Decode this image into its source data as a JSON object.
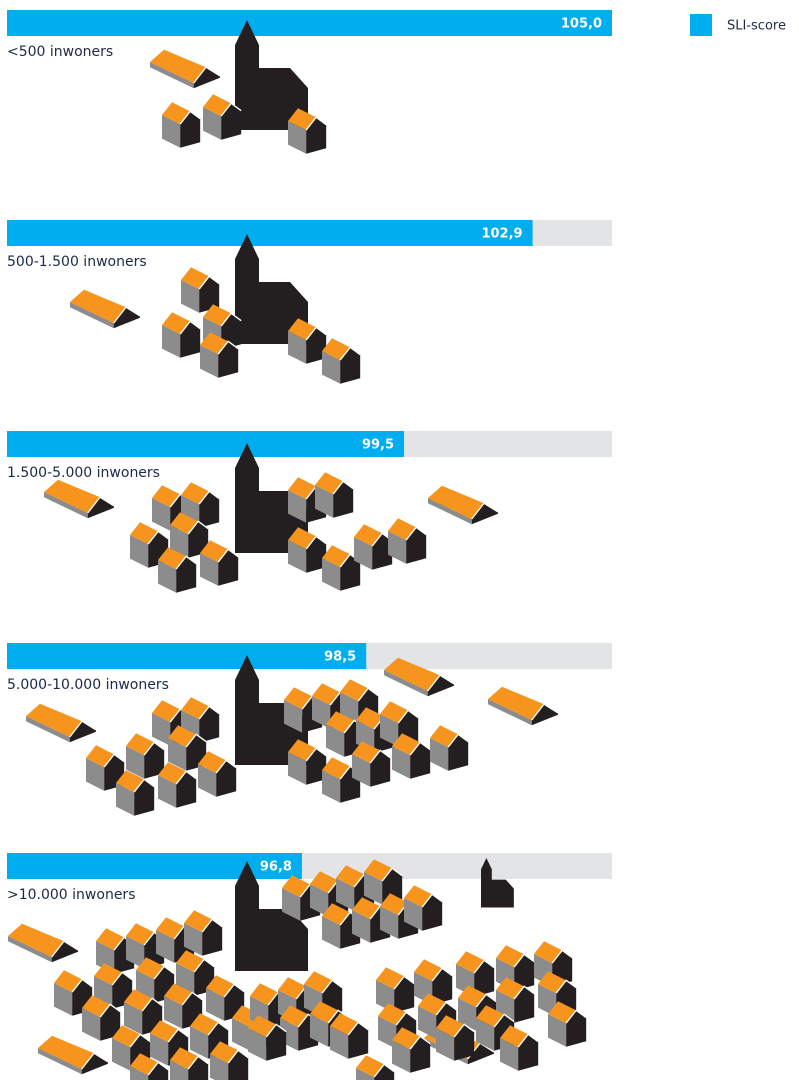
{
  "chart_data": {
    "type": "bar",
    "orientation": "horizontal",
    "categories": [
      "<500 inwoners",
      "500-1.500 inwoners",
      "1.500-5.000 inwoners",
      "5.000-10.000 inwoners",
      ">10.000 inwoners"
    ],
    "series": [
      {
        "name": "SLI-score",
        "color": "#00aeef",
        "values": [
          105.0,
          102.9,
          99.5,
          98.5,
          96.8
        ],
        "value_labels": [
          "105,0",
          "102,9",
          "99,5",
          "98,5",
          "96,8"
        ]
      }
    ],
    "xlim": [
      89,
      105
    ],
    "track_color": "#e3e4e6",
    "legend": "top-right"
  }
}
